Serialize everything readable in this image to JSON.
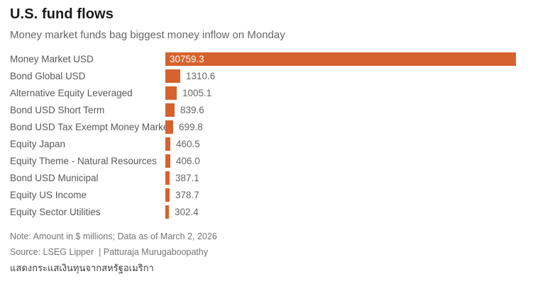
{
  "header": {
    "title": "U.S. fund flows",
    "subtitle": "Money market funds bag biggest money inflow on Monday"
  },
  "chart_data": {
    "type": "bar",
    "orientation": "horizontal",
    "title": "U.S. fund flows",
    "subtitle": "Money market funds bag biggest money inflow on Monday",
    "categories": [
      "Money Market USD",
      "Bond Global USD",
      "Alternative Equity Leveraged",
      "Bond USD Short Term",
      "Bond USD Tax Exempt Money Market",
      "Equity Japan",
      "Equity Theme - Natural Resources",
      "Bond USD Municipal",
      "Equity US Income",
      "Equity Sector Utilities"
    ],
    "values": [
      30759.3,
      1310.6,
      1005.1,
      839.6,
      699.8,
      460.5,
      406.0,
      387.1,
      378.7,
      302.4
    ],
    "value_labels": [
      "30759.3",
      "1310.6",
      "1005.1",
      "839.6",
      "699.8",
      "460.5",
      "406.0",
      "387.1",
      "378.7",
      "302.4"
    ],
    "units": "$ millions",
    "xlim": [
      0,
      30759.3
    ],
    "grid": false,
    "legend": "none",
    "bar_color": "#d6622d",
    "value_label_color_outside": "#666666",
    "value_label_color_inside": "#ffffff"
  },
  "footer": {
    "note": "Note: Amount in $ millions; Data as of March 2, 2026",
    "source": "Source: LSEG Lipper  | Patturaja Murugaboopathy",
    "caption_thai": "แสดงกระแสเงินทุนจากสหรัฐอเมริกา"
  },
  "colors": {
    "bar": "#d6622d",
    "title": "#1a1a1a",
    "subtitle": "#666666",
    "category_label": "#595959",
    "value_label": "#666666",
    "note": "#757575",
    "thai_caption": "#3f3f3f",
    "background": "#ffffff"
  }
}
